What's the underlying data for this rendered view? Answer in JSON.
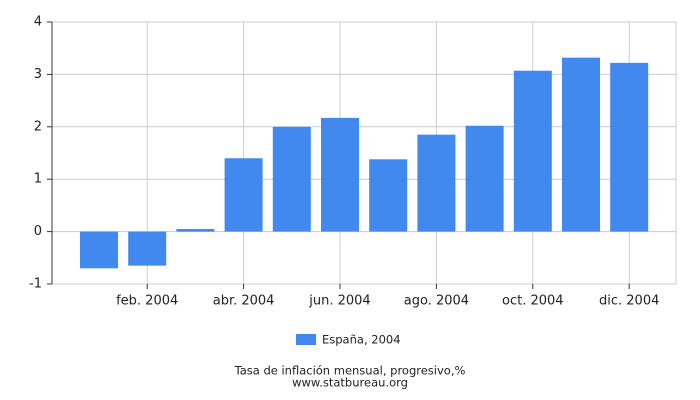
{
  "chart_data": {
    "type": "bar",
    "categories": [
      null,
      "feb. 2004",
      null,
      "abr. 2004",
      null,
      "jun. 2004",
      null,
      "ago. 2004",
      null,
      "oct. 2004",
      null,
      "dic. 2004"
    ],
    "series": [
      {
        "name": "España, 2004",
        "color": "#4189ee",
        "values": [
          -0.7,
          -0.65,
          0.05,
          1.4,
          2.0,
          2.17,
          1.38,
          1.85,
          2.02,
          3.07,
          3.32,
          3.22
        ]
      }
    ],
    "ylim": [
      -1,
      4
    ],
    "yticks": [
      -1,
      0,
      1,
      2,
      3,
      4
    ],
    "grid": true,
    "caption": "Tasa de inflación mensual, progresivo,%",
    "source": "www.statbureau.org"
  }
}
